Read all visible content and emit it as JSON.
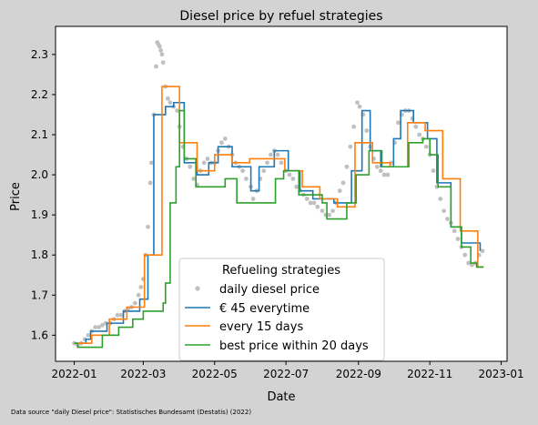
{
  "chart_data": {
    "type": "line",
    "title": "Diesel price by refuel strategies",
    "xlabel": "Date",
    "ylabel": "Price",
    "footnote": "Data source \"daily Diesel price\": Statistisches Bundesamt (Destatis) (2022)",
    "x_range": [
      "2021-12-16",
      "2023-01-06"
    ],
    "ylim": [
      1.535,
      2.37
    ],
    "x_ticks": [
      {
        "date": "2022-01-01",
        "label": "2022-01"
      },
      {
        "date": "2022-03-01",
        "label": "2022-03"
      },
      {
        "date": "2022-05-01",
        "label": "2022-05"
      },
      {
        "date": "2022-07-01",
        "label": "2022-07"
      },
      {
        "date": "2022-09-01",
        "label": "2022-09"
      },
      {
        "date": "2022-11-01",
        "label": "2022-11"
      },
      {
        "date": "2023-01-01",
        "label": "2023-01"
      }
    ],
    "y_ticks": [
      {
        "value": 1.6,
        "label": "1.6"
      },
      {
        "value": 1.7,
        "label": "1.7"
      },
      {
        "value": 1.8,
        "label": "1.8"
      },
      {
        "value": 1.9,
        "label": "1.9"
      },
      {
        "value": 2.0,
        "label": "2.0"
      },
      {
        "value": 2.1,
        "label": "2.1"
      },
      {
        "value": 2.2,
        "label": "2.2"
      },
      {
        "value": 2.3,
        "label": "2.3"
      }
    ],
    "grid": false,
    "legend": {
      "title": "Refueling strategies",
      "placement": "bottom-center",
      "entries": [
        {
          "label": "daily diesel price",
          "marker": "dot",
          "color": "#c0c0c0"
        },
        {
          "label": "€ 45 everytime",
          "marker": "line",
          "color": "#1f77b4"
        },
        {
          "label": "every 15 days",
          "marker": "line",
          "color": "#ff7f0e"
        },
        {
          "label": "best price within 20 days",
          "marker": "line",
          "color": "#2ca02c"
        }
      ]
    },
    "series": [
      {
        "name": "daily diesel price",
        "kind": "scatter",
        "color": "#c0c0c0",
        "points": [
          [
            "2022-01-01",
            1.58
          ],
          [
            "2022-01-04",
            1.575
          ],
          [
            "2022-01-07",
            1.58
          ],
          [
            "2022-01-10",
            1.59
          ],
          [
            "2022-01-13",
            1.6
          ],
          [
            "2022-01-16",
            1.61
          ],
          [
            "2022-01-19",
            1.62
          ],
          [
            "2022-01-22",
            1.62
          ],
          [
            "2022-01-25",
            1.625
          ],
          [
            "2022-01-28",
            1.63
          ],
          [
            "2022-02-01",
            1.63
          ],
          [
            "2022-02-04",
            1.64
          ],
          [
            "2022-02-07",
            1.65
          ],
          [
            "2022-02-10",
            1.65
          ],
          [
            "2022-02-13",
            1.66
          ],
          [
            "2022-02-16",
            1.665
          ],
          [
            "2022-02-19",
            1.67
          ],
          [
            "2022-02-22",
            1.68
          ],
          [
            "2022-02-25",
            1.7
          ],
          [
            "2022-02-27",
            1.72
          ],
          [
            "2022-03-01",
            1.74
          ],
          [
            "2022-03-03",
            1.8
          ],
          [
            "2022-03-05",
            1.87
          ],
          [
            "2022-03-07",
            1.98
          ],
          [
            "2022-03-08",
            2.03
          ],
          [
            "2022-03-10",
            2.15
          ],
          [
            "2022-03-12",
            2.27
          ],
          [
            "2022-03-13",
            2.33
          ],
          [
            "2022-03-14",
            2.325
          ],
          [
            "2022-03-15",
            2.32
          ],
          [
            "2022-03-16",
            2.31
          ],
          [
            "2022-03-17",
            2.3
          ],
          [
            "2022-03-18",
            2.28
          ],
          [
            "2022-03-20",
            2.22
          ],
          [
            "2022-03-22",
            2.19
          ],
          [
            "2022-03-24",
            2.18
          ],
          [
            "2022-03-27",
            2.17
          ],
          [
            "2022-03-30",
            2.16
          ],
          [
            "2022-04-01",
            2.12
          ],
          [
            "2022-04-04",
            2.07
          ],
          [
            "2022-04-07",
            2.04
          ],
          [
            "2022-04-10",
            2.02
          ],
          [
            "2022-04-13",
            1.99
          ],
          [
            "2022-04-16",
            1.975
          ],
          [
            "2022-04-19",
            2.01
          ],
          [
            "2022-04-22",
            2.03
          ],
          [
            "2022-04-25",
            2.04
          ],
          [
            "2022-04-28",
            2.03
          ],
          [
            "2022-05-01",
            2.03
          ],
          [
            "2022-05-04",
            2.06
          ],
          [
            "2022-05-07",
            2.08
          ],
          [
            "2022-05-10",
            2.09
          ],
          [
            "2022-05-13",
            2.07
          ],
          [
            "2022-05-16",
            2.05
          ],
          [
            "2022-05-19",
            2.03
          ],
          [
            "2022-05-22",
            2.02
          ],
          [
            "2022-05-25",
            2.01
          ],
          [
            "2022-05-28",
            1.99
          ],
          [
            "2022-06-01",
            1.97
          ],
          [
            "2022-06-03",
            1.94
          ],
          [
            "2022-06-06",
            1.96
          ],
          [
            "2022-06-09",
            1.99
          ],
          [
            "2022-06-12",
            2.01
          ],
          [
            "2022-06-15",
            2.03
          ],
          [
            "2022-06-18",
            2.05
          ],
          [
            "2022-06-21",
            2.06
          ],
          [
            "2022-06-24",
            2.05
          ],
          [
            "2022-06-27",
            2.03
          ],
          [
            "2022-07-01",
            2.01
          ],
          [
            "2022-07-04",
            2.0
          ],
          [
            "2022-07-07",
            1.99
          ],
          [
            "2022-07-10",
            1.97
          ],
          [
            "2022-07-13",
            1.96
          ],
          [
            "2022-07-16",
            1.95
          ],
          [
            "2022-07-19",
            1.94
          ],
          [
            "2022-07-22",
            1.93
          ],
          [
            "2022-07-25",
            1.93
          ],
          [
            "2022-07-28",
            1.92
          ],
          [
            "2022-08-01",
            1.91
          ],
          [
            "2022-08-04",
            1.9
          ],
          [
            "2022-08-07",
            1.9
          ],
          [
            "2022-08-10",
            1.91
          ],
          [
            "2022-08-13",
            1.93
          ],
          [
            "2022-08-16",
            1.96
          ],
          [
            "2022-08-19",
            1.98
          ],
          [
            "2022-08-22",
            2.02
          ],
          [
            "2022-08-25",
            2.07
          ],
          [
            "2022-08-28",
            2.12
          ],
          [
            "2022-08-31",
            2.18
          ],
          [
            "2022-09-02",
            2.17
          ],
          [
            "2022-09-05",
            2.15
          ],
          [
            "2022-09-08",
            2.11
          ],
          [
            "2022-09-11",
            2.07
          ],
          [
            "2022-09-14",
            2.04
          ],
          [
            "2022-09-17",
            2.02
          ],
          [
            "2022-09-20",
            2.01
          ],
          [
            "2022-09-23",
            2.0
          ],
          [
            "2022-09-26",
            2.0
          ],
          [
            "2022-09-29",
            2.03
          ],
          [
            "2022-10-02",
            2.08
          ],
          [
            "2022-10-05",
            2.13
          ],
          [
            "2022-10-08",
            2.15
          ],
          [
            "2022-10-11",
            2.16
          ],
          [
            "2022-10-14",
            2.16
          ],
          [
            "2022-10-17",
            2.14
          ],
          [
            "2022-10-20",
            2.12
          ],
          [
            "2022-10-23",
            2.1
          ],
          [
            "2022-10-26",
            2.09
          ],
          [
            "2022-10-29",
            2.07
          ],
          [
            "2022-11-01",
            2.05
          ],
          [
            "2022-11-04",
            2.01
          ],
          [
            "2022-11-07",
            1.97
          ],
          [
            "2022-11-10",
            1.94
          ],
          [
            "2022-11-13",
            1.91
          ],
          [
            "2022-11-16",
            1.89
          ],
          [
            "2022-11-19",
            1.88
          ],
          [
            "2022-11-22",
            1.86
          ],
          [
            "2022-11-25",
            1.84
          ],
          [
            "2022-11-28",
            1.82
          ],
          [
            "2022-12-01",
            1.8
          ],
          [
            "2022-12-04",
            1.78
          ],
          [
            "2022-12-07",
            1.775
          ],
          [
            "2022-12-10",
            1.78
          ],
          [
            "2022-12-13",
            1.8
          ],
          [
            "2022-12-16",
            1.81
          ]
        ]
      },
      {
        "name": "€ 45 everytime",
        "kind": "step",
        "color": "#1f77b4",
        "points": [
          [
            "2022-01-01",
            1.58
          ],
          [
            "2022-01-11",
            1.59
          ],
          [
            "2022-01-15",
            1.61
          ],
          [
            "2022-01-29",
            1.63
          ],
          [
            "2022-02-12",
            1.66
          ],
          [
            "2022-02-26",
            1.69
          ],
          [
            "2022-03-05",
            1.8
          ],
          [
            "2022-03-10",
            2.15
          ],
          [
            "2022-03-20",
            2.17
          ],
          [
            "2022-03-27",
            2.18
          ],
          [
            "2022-04-05",
            2.03
          ],
          [
            "2022-04-16",
            2.0
          ],
          [
            "2022-04-26",
            2.03
          ],
          [
            "2022-05-04",
            2.07
          ],
          [
            "2022-05-16",
            2.02
          ],
          [
            "2022-06-01",
            1.96
          ],
          [
            "2022-06-08",
            2.02
          ],
          [
            "2022-06-21",
            2.06
          ],
          [
            "2022-07-03",
            2.01
          ],
          [
            "2022-07-13",
            1.96
          ],
          [
            "2022-07-24",
            1.94
          ],
          [
            "2022-08-11",
            1.93
          ],
          [
            "2022-08-26",
            2.01
          ],
          [
            "2022-09-04",
            2.16
          ],
          [
            "2022-09-11",
            2.06
          ],
          [
            "2022-09-20",
            2.02
          ],
          [
            "2022-10-01",
            2.09
          ],
          [
            "2022-10-07",
            2.16
          ],
          [
            "2022-10-18",
            2.13
          ],
          [
            "2022-10-30",
            2.09
          ],
          [
            "2022-11-07",
            1.98
          ],
          [
            "2022-11-19",
            1.87
          ],
          [
            "2022-11-28",
            1.83
          ],
          [
            "2022-12-14",
            1.81
          ]
        ]
      },
      {
        "name": "every 15 days",
        "kind": "step",
        "color": "#ff7f0e",
        "points": [
          [
            "2022-01-01",
            1.58
          ],
          [
            "2022-01-16",
            1.6
          ],
          [
            "2022-01-31",
            1.64
          ],
          [
            "2022-02-15",
            1.67
          ],
          [
            "2022-03-02",
            1.8
          ],
          [
            "2022-03-17",
            2.22
          ],
          [
            "2022-04-01",
            2.08
          ],
          [
            "2022-04-16",
            2.01
          ],
          [
            "2022-05-01",
            2.05
          ],
          [
            "2022-05-16",
            2.03
          ],
          [
            "2022-05-31",
            2.04
          ],
          [
            "2022-06-15",
            2.04
          ],
          [
            "2022-06-30",
            2.01
          ],
          [
            "2022-07-15",
            1.97
          ],
          [
            "2022-07-30",
            1.94
          ],
          [
            "2022-08-14",
            1.92
          ],
          [
            "2022-08-29",
            2.08
          ],
          [
            "2022-09-13",
            2.03
          ],
          [
            "2022-09-28",
            2.02
          ],
          [
            "2022-10-13",
            2.13
          ],
          [
            "2022-10-28",
            2.11
          ],
          [
            "2022-11-12",
            1.99
          ],
          [
            "2022-11-27",
            1.86
          ],
          [
            "2022-12-12",
            1.77
          ],
          [
            "2022-12-17",
            1.77
          ]
        ]
      },
      {
        "name": "best price within 20 days",
        "kind": "step",
        "color": "#2ca02c",
        "points": [
          [
            "2022-01-01",
            1.58
          ],
          [
            "2022-01-04",
            1.57
          ],
          [
            "2022-01-25",
            1.6
          ],
          [
            "2022-02-08",
            1.62
          ],
          [
            "2022-02-20",
            1.64
          ],
          [
            "2022-03-01",
            1.66
          ],
          [
            "2022-03-18",
            1.68
          ],
          [
            "2022-03-20",
            1.73
          ],
          [
            "2022-03-24",
            1.93
          ],
          [
            "2022-03-29",
            2.02
          ],
          [
            "2022-04-01",
            2.16
          ],
          [
            "2022-04-05",
            2.04
          ],
          [
            "2022-04-15",
            1.97
          ],
          [
            "2022-05-10",
            1.99
          ],
          [
            "2022-05-20",
            1.93
          ],
          [
            "2022-06-22",
            1.99
          ],
          [
            "2022-06-29",
            2.01
          ],
          [
            "2022-07-12",
            1.95
          ],
          [
            "2022-08-01",
            1.93
          ],
          [
            "2022-08-05",
            1.89
          ],
          [
            "2022-08-22",
            1.93
          ],
          [
            "2022-08-30",
            2.0
          ],
          [
            "2022-09-10",
            2.06
          ],
          [
            "2022-09-21",
            2.02
          ],
          [
            "2022-10-14",
            2.08
          ],
          [
            "2022-10-26",
            2.09
          ],
          [
            "2022-11-01",
            2.05
          ],
          [
            "2022-11-08",
            1.97
          ],
          [
            "2022-11-19",
            1.87
          ],
          [
            "2022-11-28",
            1.82
          ],
          [
            "2022-12-06",
            1.78
          ],
          [
            "2022-12-11",
            1.77
          ],
          [
            "2022-12-17",
            1.77
          ]
        ]
      }
    ]
  }
}
